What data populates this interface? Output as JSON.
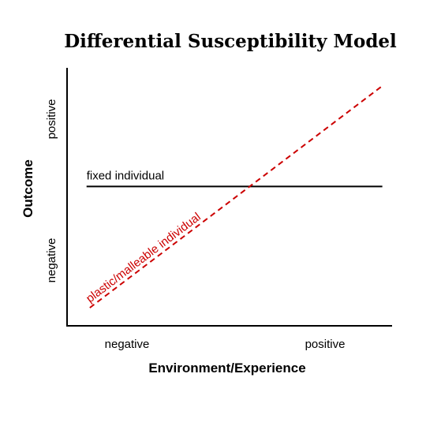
{
  "chart_data": {
    "type": "line",
    "title": "Differential Susceptibility Model",
    "xlabel": "Environment/Experience",
    "ylabel": "Outcome",
    "x_ticks": [
      "negative",
      "positive"
    ],
    "y_ticks": [
      "negative",
      "positive"
    ],
    "xlim": [
      0,
      1
    ],
    "ylim": [
      0,
      1
    ],
    "grid": false,
    "legend": "none",
    "series": [
      {
        "name": "fixed individual",
        "x": [
          0.06,
          0.97
        ],
        "y": [
          0.54,
          0.54
        ],
        "color": "#000000",
        "style": "solid"
      },
      {
        "name": "plastic/malleable individual",
        "x": [
          0.07,
          0.97
        ],
        "y": [
          0.07,
          0.93
        ],
        "color": "#cc0000",
        "style": "dashed"
      }
    ]
  }
}
